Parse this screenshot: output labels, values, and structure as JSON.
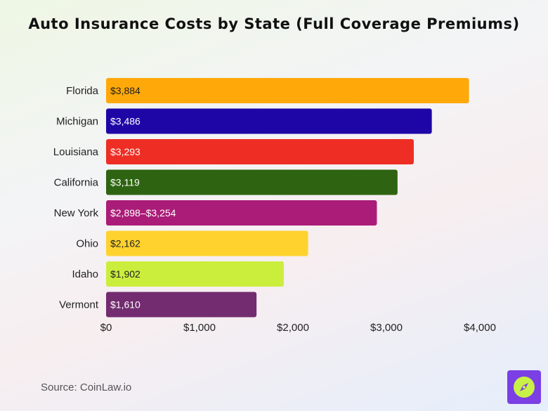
{
  "chart_data": {
    "type": "bar",
    "orientation": "horizontal",
    "title": "Auto Insurance Costs by State (Full Coverage Premiums)",
    "categories": [
      "Florida",
      "Michigan",
      "Louisiana",
      "California",
      "New York",
      "Ohio",
      "Idaho",
      "Vermont"
    ],
    "values": [
      3884,
      3486,
      3293,
      3119,
      2898,
      2162,
      1902,
      1610
    ],
    "data_labels": [
      "$3,884",
      "$3,486",
      "$3,293",
      "$3,119",
      "$2,898–$3,254",
      "$2,162",
      "$1,902",
      "$1,610"
    ],
    "bar_colors": [
      "#ffa80a",
      "#1e06a6",
      "#ee2e24",
      "#2e6411",
      "#ab1c78",
      "#ffd22e",
      "#cbee3d",
      "#732c70"
    ],
    "label_colors": [
      "#222222",
      "#ffffff",
      "#ffffff",
      "#ffffff",
      "#ffffff",
      "#222222",
      "#222222",
      "#ffffff"
    ],
    "xlim": [
      0,
      4000
    ],
    "xticks": [
      0,
      1000,
      2000,
      3000,
      4000
    ],
    "xtick_labels": [
      "$0",
      "$1,000",
      "$2,000",
      "$3,000",
      "$4,000"
    ],
    "grid": false,
    "legend": "none"
  },
  "source": "Source: CoinLaw.io",
  "logo": {
    "icon": "compass-icon",
    "color": "#7b3fe4",
    "accent": "#c9f046"
  }
}
